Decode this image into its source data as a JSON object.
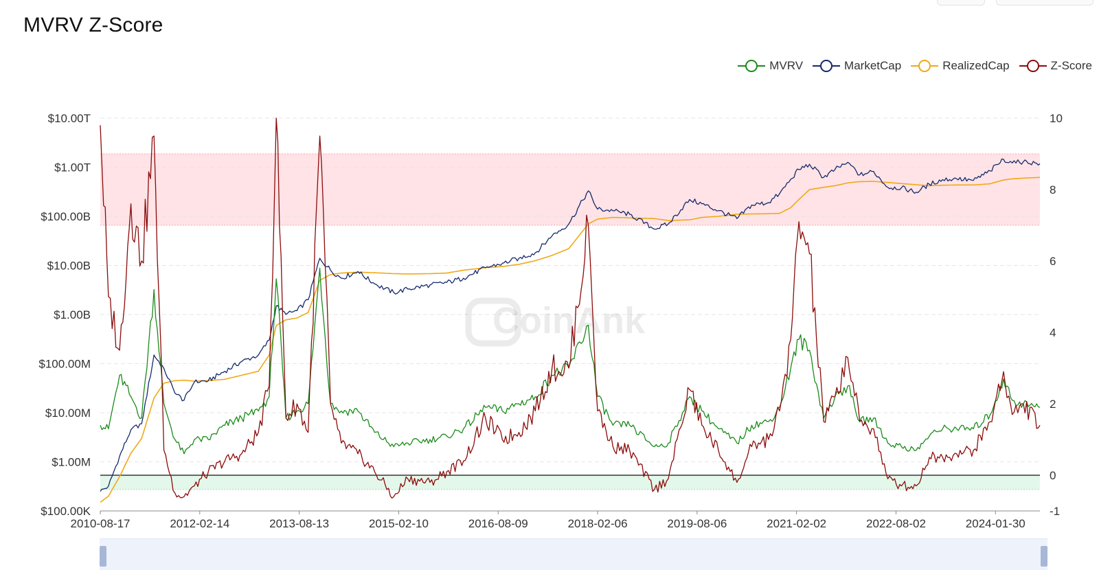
{
  "page": {
    "title": "MVRV Z-Score",
    "watermark": "CoinAnk"
  },
  "legend": [
    {
      "name": "MVRV",
      "color": "#1a8a1a"
    },
    {
      "name": "MarketCap",
      "color": "#14296b"
    },
    {
      "name": "RealizedCap",
      "color": "#f0a817"
    },
    {
      "name": "Z-Score",
      "color": "#8b0a0a"
    }
  ],
  "chart_data": {
    "type": "line",
    "title": "MVRV Z-Score",
    "x_tick_labels": [
      "2010-08-17",
      "2012-02-14",
      "2013-08-13",
      "2015-02-10",
      "2016-08-09",
      "2018-02-06",
      "2019-08-06",
      "2021-02-02",
      "2022-08-02",
      "2024-01-30"
    ],
    "x_range": [
      "2010-08-17",
      "2024-09-30"
    ],
    "y_left": {
      "scale": "log",
      "tick_labels": [
        "$10.00T",
        "$1.00T",
        "$100.00B",
        "$10.00B",
        "$1.00B",
        "$100.00M",
        "$10.00M",
        "$1.00M",
        "$100.00K"
      ],
      "range": [
        100000,
        10000000000000
      ]
    },
    "y_right": {
      "scale": "linear",
      "tick_labels": [
        "10",
        "8",
        "6",
        "4",
        "2",
        "0",
        "-1"
      ],
      "range": [
        -1,
        10
      ]
    },
    "zones": [
      {
        "name": "overvalued",
        "axis": "right",
        "from": 7,
        "to": 9,
        "color": "#ffe3e6"
      },
      {
        "name": "undervalued",
        "axis": "right",
        "from": -0.4,
        "to": 0,
        "color": "#e3f8ea"
      }
    ],
    "grid": true,
    "legend_position": "top-right",
    "x": [
      "2010-08-17",
      "2010-10-01",
      "2010-12-01",
      "2011-02-01",
      "2011-04-01",
      "2011-06-08",
      "2011-08-01",
      "2011-10-01",
      "2011-11-20",
      "2012-01-15",
      "2012-04-01",
      "2012-07-01",
      "2012-10-01",
      "2013-01-01",
      "2013-03-01",
      "2013-04-09",
      "2013-06-01",
      "2013-08-01",
      "2013-10-01",
      "2013-12-04",
      "2014-02-01",
      "2014-04-01",
      "2014-07-01",
      "2014-10-01",
      "2015-01-14",
      "2015-04-01",
      "2015-08-01",
      "2015-11-01",
      "2016-02-01",
      "2016-06-01",
      "2016-09-01",
      "2016-12-01",
      "2017-03-01",
      "2017-06-01",
      "2017-09-01",
      "2017-12-17",
      "2018-02-06",
      "2018-05-01",
      "2018-08-01",
      "2018-12-15",
      "2019-03-01",
      "2019-06-26",
      "2019-09-01",
      "2019-12-01",
      "2020-03-12",
      "2020-06-01",
      "2020-09-01",
      "2020-11-01",
      "2021-01-01",
      "2021-02-15",
      "2021-04-14",
      "2021-07-01",
      "2021-09-01",
      "2021-11-10",
      "2022-01-15",
      "2022-04-01",
      "2022-06-18",
      "2022-09-01",
      "2022-11-21",
      "2023-02-01",
      "2023-04-15",
      "2023-07-01",
      "2023-10-01",
      "2024-01-01",
      "2024-03-14",
      "2024-05-01",
      "2024-07-01",
      "2024-09-30"
    ],
    "series": [
      {
        "name": "MarketCap",
        "axis": "left",
        "values": [
          250000,
          320000,
          1300000,
          4500000,
          6000000,
          150000000,
          80000000,
          25000000,
          18000000,
          42000000,
          45000000,
          70000000,
          110000000,
          150000000,
          300000000,
          1500000000,
          1000000000,
          1200000000,
          2000000000,
          14000000000,
          8000000000,
          5500000000,
          7500000000,
          4200000000,
          2800000000,
          3300000000,
          4000000000,
          4500000000,
          5500000000,
          9000000000,
          11000000000,
          14000000000,
          18000000000,
          40000000000,
          70000000000,
          330000000000,
          140000000000,
          130000000000,
          110000000000,
          55000000000,
          70000000000,
          220000000000,
          180000000000,
          130000000000,
          90000000000,
          170000000000,
          190000000000,
          290000000000,
          570000000000,
          900000000000,
          1150000000000,
          620000000000,
          900000000000,
          1260000000000,
          700000000000,
          820000000000,
          390000000000,
          380000000000,
          310000000000,
          450000000000,
          560000000000,
          580000000000,
          540000000000,
          840000000000,
          1450000000000,
          1220000000000,
          1300000000000,
          1180000000000
        ]
      },
      {
        "name": "RealizedCap",
        "axis": "left",
        "values": [
          150000,
          200000,
          500000,
          1500000,
          3000000,
          20000000,
          40000000,
          45000000,
          46000000,
          44000000,
          45000000,
          48000000,
          58000000,
          70000000,
          150000000,
          600000000,
          780000000,
          850000000,
          1100000000,
          5000000000,
          6500000000,
          7000000000,
          7300000000,
          7100000000,
          6800000000,
          6700000000,
          6800000000,
          7000000000,
          8000000000,
          9000000000,
          9500000000,
          10500000000,
          12500000000,
          16000000000,
          22000000000,
          70000000000,
          88000000000,
          95000000000,
          93000000000,
          90000000000,
          82000000000,
          85000000000,
          95000000000,
          100000000000,
          110000000000,
          112000000000,
          113000000000,
          115000000000,
          150000000000,
          220000000000,
          350000000000,
          390000000000,
          420000000000,
          480000000000,
          510000000000,
          515000000000,
          490000000000,
          465000000000,
          440000000000,
          420000000000,
          430000000000,
          435000000000,
          435000000000,
          460000000000,
          550000000000,
          580000000000,
          600000000000,
          620000000000
        ]
      },
      {
        "name": "MVRV",
        "axis": "right",
        "values": [
          1.4,
          1.3,
          2.8,
          2.2,
          1.6,
          5.2,
          2.0,
          1.0,
          0.6,
          1.0,
          1.0,
          1.4,
          1.6,
          1.8,
          2.2,
          5.5,
          1.6,
          1.8,
          2.0,
          5.8,
          2.0,
          1.8,
          1.8,
          1.2,
          0.8,
          0.9,
          1.0,
          1.1,
          1.3,
          1.9,
          1.8,
          2.0,
          2.2,
          2.8,
          3.0,
          4.2,
          2.2,
          1.4,
          1.4,
          0.8,
          0.9,
          2.2,
          1.8,
          1.3,
          0.9,
          1.4,
          1.5,
          1.9,
          3.0,
          3.8,
          3.5,
          1.6,
          2.2,
          2.5,
          1.5,
          1.6,
          0.9,
          0.8,
          0.7,
          1.1,
          1.3,
          1.3,
          1.3,
          1.7,
          2.7,
          2.1,
          2.0,
          1.9
        ]
      },
      {
        "name": "Z-Score",
        "axis": "right",
        "values": [
          9.8,
          5.0,
          3.5,
          7.6,
          6.0,
          9.5,
          0.7,
          -0.5,
          -0.6,
          -0.3,
          0.1,
          0.4,
          0.6,
          1.2,
          2.5,
          10.0,
          1.6,
          2.0,
          1.2,
          9.5,
          2.0,
          0.9,
          0.6,
          0.1,
          -0.6,
          -0.1,
          -0.2,
          0.1,
          0.4,
          1.6,
          1.0,
          1.2,
          1.8,
          3.0,
          3.0,
          7.0,
          1.8,
          0.8,
          0.7,
          -0.4,
          -0.1,
          2.4,
          1.4,
          0.7,
          -0.2,
          0.8,
          1.0,
          1.8,
          3.8,
          7.1,
          6.2,
          1.5,
          2.2,
          3.3,
          1.5,
          1.3,
          -0.1,
          -0.3,
          -0.3,
          0.5,
          0.5,
          0.6,
          0.7,
          1.5,
          2.9,
          1.7,
          2.0,
          1.4
        ]
      }
    ]
  }
}
